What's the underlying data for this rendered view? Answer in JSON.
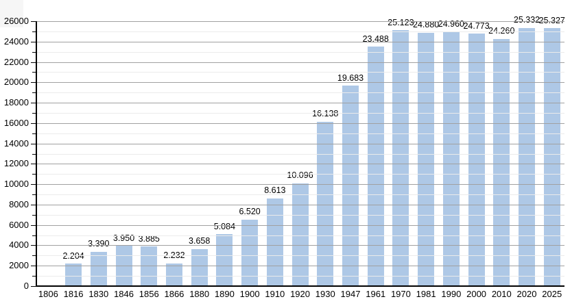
{
  "chart_data": {
    "type": "bar",
    "title": "",
    "xlabel": "",
    "ylabel": "",
    "ylim": [
      0,
      26000
    ],
    "y_major_step": 2000,
    "y_minor_step": 1000,
    "grid": "on",
    "legend_position": "none",
    "bar_color": "#aec8e6",
    "major_grid_color": "#a0a0a0",
    "minor_grid_color": "#ebebeb",
    "axis_color": "#000000",
    "label_color": "#000000",
    "categories": [
      "1806",
      "1816",
      "1830",
      "1846",
      "1856",
      "1866",
      "1880",
      "1890",
      "1900",
      "1910",
      "1920",
      "1930",
      "1947",
      "1961",
      "1970",
      "1981",
      "1990",
      "2000",
      "2010",
      "2020",
      "2025"
    ],
    "values": [
      null,
      2204,
      3390,
      3950,
      3885,
      2232,
      3658,
      5084,
      6520,
      8613,
      10096,
      16138,
      19683,
      23488,
      25123,
      24880,
      24960,
      24773,
      24260,
      25332,
      25327
    ],
    "value_labels": [
      "",
      "2.204",
      "3.390",
      "3.950",
      "3.885",
      "2.232",
      "3.658",
      "5.084",
      "6.520",
      "8.613",
      "10.096",
      "16.138",
      "19.683",
      "23.488",
      "25.123",
      "24.880",
      "24.960",
      "24.773",
      "24.260",
      "25.332",
      "25.327"
    ],
    "y_tick_labels": [
      "0",
      "2000",
      "4000",
      "6000",
      "8000",
      "10000",
      "12000",
      "14000",
      "16000",
      "18000",
      "20000",
      "22000",
      "24000",
      "26000"
    ]
  }
}
